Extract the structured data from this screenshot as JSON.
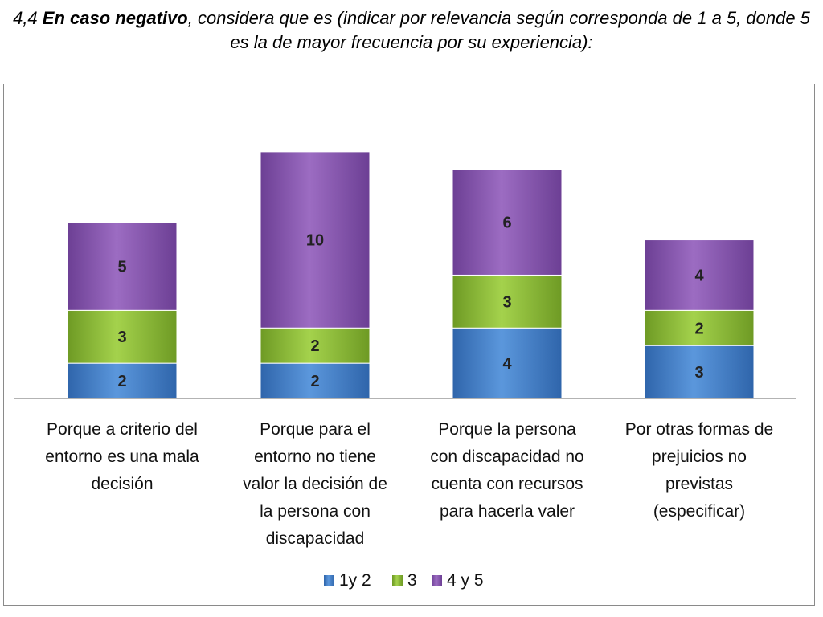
{
  "heading": {
    "number": "4,4",
    "bold": "En caso negativo",
    "rest": ", considera que es (indicar por relevancia según corresponda de 1 a 5, donde 5 es la de mayor frecuencia por su experiencia):"
  },
  "chart_data": {
    "type": "bar",
    "stacked": true,
    "title": "",
    "xlabel": "",
    "ylabel": "",
    "ylim": [
      0,
      16
    ],
    "grid": false,
    "legend_position": "bottom",
    "categories": [
      "Porque a criterio del entorno es una mala decisión",
      "Porque para el entorno no tiene valor la decisión de la persona con discapacidad",
      "Porque la persona con discapacidad no cuenta con recursos para hacerla valer",
      "Por otras formas de prejuicios no previstas (especificar)"
    ],
    "category_lines": [
      [
        "Porque a criterio del",
        "entorno es una mala",
        "decisión"
      ],
      [
        "Porque para el",
        "entorno no tiene",
        "valor la decisión de",
        "la persona con",
        "discapacidad"
      ],
      [
        "Porque la persona",
        "con discapacidad no",
        "cuenta con recursos",
        "para hacerla valer"
      ],
      [
        "Por otras formas de",
        "prejuicios no",
        "previstas",
        "(especificar)"
      ]
    ],
    "series": [
      {
        "name": "1y 2",
        "values": [
          2,
          2,
          4,
          3
        ],
        "color": "#4a86cf"
      },
      {
        "name": "3",
        "values": [
          3,
          2,
          3,
          2
        ],
        "color": "#8fbe3a"
      },
      {
        "name": "4 y 5",
        "values": [
          5,
          10,
          6,
          4
        ],
        "color": "#8a5bb0"
      }
    ]
  }
}
